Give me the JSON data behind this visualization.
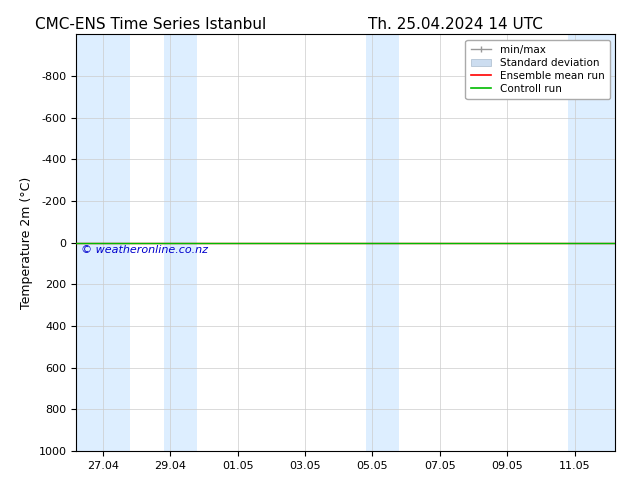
{
  "title_left": "CMC-ENS Time Series Istanbul",
  "title_right": "Th. 25.04.2024 14 UTC",
  "ylabel": "Temperature 2m (°C)",
  "bg_color": "#ffffff",
  "plot_bg_color": "#ffffff",
  "shaded_band_color": "#ddeeff",
  "ylim_bottom": 1000,
  "ylim_top": -1000,
  "yticks": [
    -800,
    -600,
    -400,
    -200,
    0,
    200,
    400,
    600,
    800,
    1000
  ],
  "xtick_labels": [
    "27.04",
    "29.04",
    "01.05",
    "03.05",
    "05.05",
    "07.05",
    "09.05",
    "11.05"
  ],
  "xtick_positions": [
    0,
    2,
    4,
    6,
    8,
    10,
    12,
    14
  ],
  "xlim": [
    -0.8,
    15.2
  ],
  "watermark": "© weatheronline.co.nz",
  "watermark_color": "#0000cc",
  "shaded_bands": [
    [
      -0.8,
      0.8
    ],
    [
      1.8,
      2.8
    ],
    [
      7.8,
      8.8
    ],
    [
      13.8,
      15.2
    ]
  ],
  "line_y": 0,
  "ensemble_mean_color": "#ff0000",
  "control_run_color": "#00bb00",
  "minmax_color": "#999999",
  "stddev_color": "#ccddf0",
  "legend_entries": [
    "min/max",
    "Standard deviation",
    "Ensemble mean run",
    "Controll run"
  ],
  "title_fontsize": 11,
  "label_fontsize": 9,
  "tick_fontsize": 8,
  "watermark_fontsize": 8,
  "legend_fontsize": 7.5
}
